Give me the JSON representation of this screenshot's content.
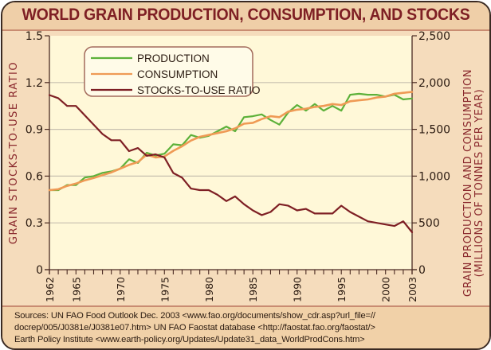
{
  "title": "WORLD GRAIN PRODUCTION, CONSUMPTION, AND STOCKS",
  "sources": [
    "Sources: UN FAO Food Outlook Dec. 2003 <www.fao.org/documents/show_cdr.asp?url_file=//",
    "docrep/005/J0381e/J0381e07.htm> UN FAO Faostat database <http://faostat.fao.org/faostat/>",
    "Earth Policy Institute <www.earth-policy.org/Updates/Update31_data_WorldProdCons.htm>"
  ],
  "colors": {
    "production": "#5db13a",
    "consumption": "#ef9a55",
    "stocks": "#7e1f24",
    "plot_bg": "#fff8d8",
    "panel_bg": "#f5dcbc",
    "title": "#7e1f24",
    "grid": "#c8c0b0"
  },
  "chart_data": {
    "type": "line",
    "title": "WORLD GRAIN PRODUCTION, CONSUMPTION, AND STOCKS",
    "xlabel": "",
    "ylabel_left": "GRAIN STOCKS-TO-USE RATIO",
    "ylabel_right_line1": "GRAIN PRODUCTION AND CONSUMPTION",
    "ylabel_right_line2": "(MILLIONS OF TONNES PER YEAR)",
    "xlim": [
      1962,
      2003
    ],
    "ylim_left": [
      0,
      1.5
    ],
    "ylim_right": [
      0,
      2500
    ],
    "grid": true,
    "legend_position": "top-left",
    "x_tick_labels": [
      "1962",
      "1965",
      "1970",
      "1975",
      "1980",
      "1985",
      "1990",
      "1995",
      "2000",
      "2003"
    ],
    "y_left_ticks": [
      "0",
      "0.3",
      "0.6",
      "0.9",
      "1.2",
      "1.5"
    ],
    "y_left_tick_values": [
      0,
      0.3,
      0.6,
      0.9,
      1.2,
      1.5
    ],
    "y_right_ticks": [
      "0",
      "500",
      "1,000",
      "1,500",
      "2,000",
      "2,500"
    ],
    "y_right_tick_values": [
      0,
      500,
      1000,
      1500,
      2000,
      2500
    ],
    "x": [
      1962,
      1963,
      1964,
      1965,
      1966,
      1967,
      1968,
      1969,
      1970,
      1971,
      1972,
      1973,
      1974,
      1975,
      1976,
      1977,
      1978,
      1979,
      1980,
      1981,
      1982,
      1983,
      1984,
      1985,
      1986,
      1987,
      1988,
      1989,
      1990,
      1991,
      1992,
      1993,
      1994,
      1995,
      1996,
      1997,
      1998,
      1999,
      2000,
      2001,
      2002,
      2003
    ],
    "series": [
      {
        "name": "PRODUCTION",
        "axis": "right",
        "color_key": "production",
        "values": [
          850,
          850,
          905,
          905,
          985,
          1000,
          1035,
          1050,
          1080,
          1180,
          1140,
          1250,
          1220,
          1240,
          1340,
          1330,
          1440,
          1410,
          1430,
          1480,
          1530,
          1480,
          1630,
          1640,
          1660,
          1600,
          1550,
          1680,
          1760,
          1700,
          1770,
          1700,
          1750,
          1700,
          1870,
          1880,
          1870,
          1870,
          1850,
          1870,
          1820,
          1830
        ]
      },
      {
        "name": "CONSUMPTION",
        "axis": "right",
        "color_key": "consumption",
        "values": [
          850,
          860,
          895,
          920,
          955,
          980,
          1010,
          1040,
          1080,
          1120,
          1150,
          1230,
          1200,
          1210,
          1270,
          1320,
          1380,
          1420,
          1440,
          1460,
          1480,
          1510,
          1560,
          1570,
          1610,
          1640,
          1630,
          1690,
          1710,
          1720,
          1740,
          1750,
          1770,
          1760,
          1800,
          1810,
          1820,
          1840,
          1850,
          1880,
          1890,
          1900
        ]
      },
      {
        "name": "STOCKS-TO-USE RATIO",
        "axis": "left",
        "color_key": "stocks",
        "values": [
          1.12,
          1.1,
          1.05,
          1.05,
          0.99,
          0.93,
          0.87,
          0.83,
          0.83,
          0.76,
          0.78,
          0.73,
          0.74,
          0.72,
          0.62,
          0.59,
          0.52,
          0.51,
          0.51,
          0.48,
          0.44,
          0.47,
          0.42,
          0.38,
          0.35,
          0.37,
          0.42,
          0.41,
          0.38,
          0.39,
          0.36,
          0.36,
          0.36,
          0.41,
          0.37,
          0.34,
          0.31,
          0.3,
          0.29,
          0.28,
          0.31,
          0.24
        ]
      }
    ]
  }
}
